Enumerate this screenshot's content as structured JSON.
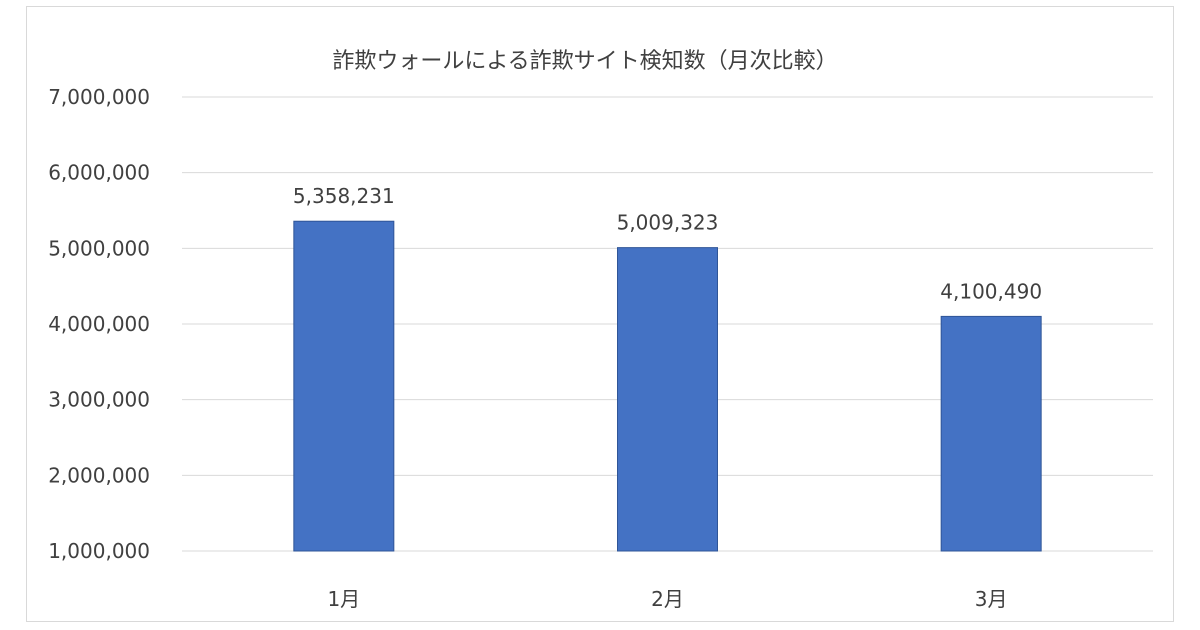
{
  "chart_data": {
    "type": "bar",
    "title": "詐欺ウォールによる詐欺サイト検知数（月次比較）",
    "categories": [
      "1月",
      "2月",
      "3月"
    ],
    "values": [
      5358231,
      5009323,
      4100490
    ],
    "data_labels": [
      "5,358,231",
      "5,009,323",
      "4,100,490"
    ],
    "ylim": [
      1000000,
      7000000
    ],
    "yticks": [
      1000000,
      2000000,
      3000000,
      4000000,
      5000000,
      6000000,
      7000000
    ],
    "ytick_labels": [
      "1,000,000",
      "2,000,000",
      "3,000,000",
      "4,000,000",
      "5,000,000",
      "6,000,000",
      "7,000,000"
    ],
    "grid": true,
    "legend": "none",
    "bar_color": "#4472C4",
    "bar_border_color": "#2F5597"
  }
}
